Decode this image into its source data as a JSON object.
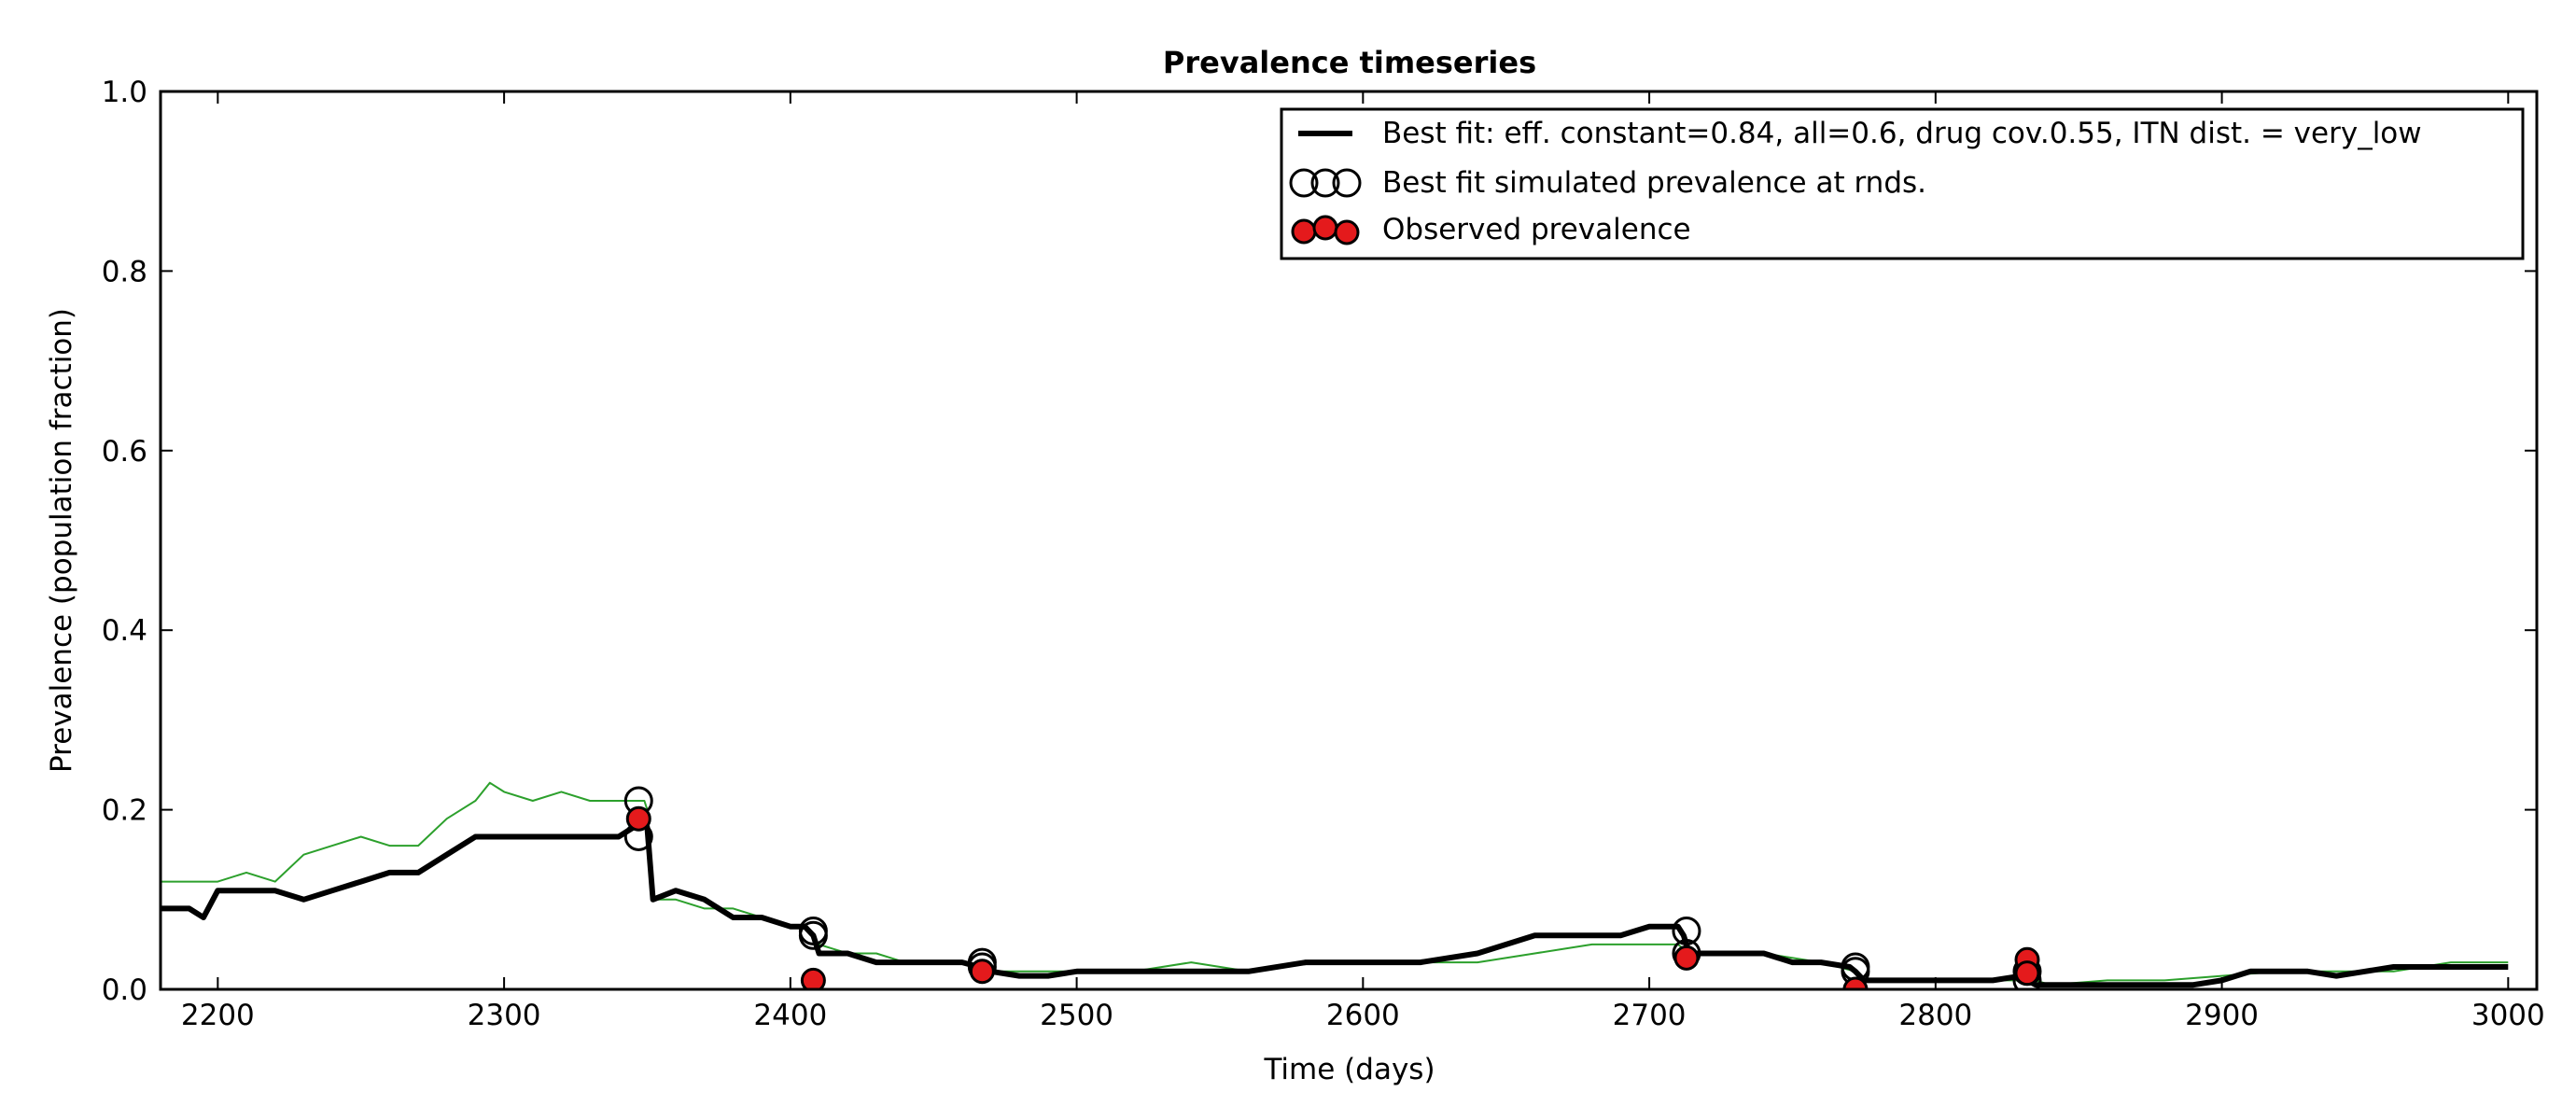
{
  "chart_data": {
    "type": "line",
    "title": "Prevalence timeseries",
    "xlabel": "Time (days)",
    "ylabel": "Prevalence (population fraction)",
    "xlim": [
      2180,
      3010
    ],
    "ylim": [
      0.0,
      1.0
    ],
    "x_ticks": [
      2200,
      2300,
      2400,
      2500,
      2600,
      2700,
      2800,
      2900,
      3000
    ],
    "x_tick_labels": [
      "2200",
      "2300",
      "2400",
      "2500",
      "2600",
      "2700",
      "2800",
      "2900",
      "3000"
    ],
    "y_ticks": [
      0.0,
      0.2,
      0.4,
      0.6,
      0.8,
      1.0
    ],
    "y_tick_labels": [
      "0.0",
      "0.2",
      "0.4",
      "0.6",
      "0.8",
      "1.0"
    ],
    "grid": false,
    "legend_position": "top-right",
    "legend": [
      {
        "label": "Best fit: eff. constant=0.84, all=0.6, drug cov.0.55, ITN dist. = very_low",
        "marker": "line"
      },
      {
        "label": "Best fit simulated prevalence at rnds.",
        "marker": "open-circle"
      },
      {
        "label": "Observed prevalence",
        "marker": "filled-circle"
      }
    ],
    "series": [
      {
        "label_ref": 0,
        "style": "line",
        "color": "#000000",
        "x": [
          2180,
          2190,
          2195,
          2200,
          2210,
          2220,
          2230,
          2240,
          2250,
          2260,
          2270,
          2280,
          2290,
          2300,
          2310,
          2320,
          2330,
          2340,
          2345,
          2349,
          2350,
          2352,
          2360,
          2370,
          2380,
          2390,
          2400,
          2405,
          2408,
          2410,
          2420,
          2430,
          2440,
          2450,
          2460,
          2466,
          2470,
          2480,
          2490,
          2500,
          2520,
          2540,
          2560,
          2580,
          2600,
          2620,
          2640,
          2660,
          2680,
          2690,
          2700,
          2710,
          2712,
          2714,
          2720,
          2730,
          2740,
          2750,
          2760,
          2770,
          2772,
          2775,
          2780,
          2790,
          2800,
          2810,
          2820,
          2830,
          2832,
          2835,
          2840,
          2850,
          2860,
          2870,
          2880,
          2890,
          2900,
          2910,
          2920,
          2930,
          2940,
          2950,
          2960,
          2970,
          2980,
          2990,
          3000
        ],
        "y": [
          0.09,
          0.09,
          0.08,
          0.11,
          0.11,
          0.11,
          0.1,
          0.11,
          0.12,
          0.13,
          0.13,
          0.15,
          0.17,
          0.17,
          0.17,
          0.17,
          0.17,
          0.17,
          0.18,
          0.19,
          0.18,
          0.1,
          0.11,
          0.1,
          0.08,
          0.08,
          0.07,
          0.07,
          0.06,
          0.04,
          0.04,
          0.03,
          0.03,
          0.03,
          0.03,
          0.025,
          0.02,
          0.015,
          0.015,
          0.02,
          0.02,
          0.02,
          0.02,
          0.03,
          0.03,
          0.03,
          0.04,
          0.06,
          0.06,
          0.06,
          0.07,
          0.07,
          0.06,
          0.04,
          0.04,
          0.04,
          0.04,
          0.03,
          0.03,
          0.025,
          0.02,
          0.01,
          0.01,
          0.01,
          0.01,
          0.01,
          0.01,
          0.015,
          0.01,
          0.005,
          0.005,
          0.005,
          0.005,
          0.005,
          0.005,
          0.005,
          0.01,
          0.02,
          0.02,
          0.02,
          0.015,
          0.02,
          0.025,
          0.025,
          0.025,
          0.025,
          0.025
        ]
      },
      {
        "style": "line",
        "color": "#2ca02c",
        "x": [
          2180,
          2190,
          2200,
          2210,
          2220,
          2230,
          2240,
          2250,
          2260,
          2270,
          2280,
          2290,
          2295,
          2300,
          2310,
          2320,
          2330,
          2340,
          2345,
          2349,
          2350,
          2352,
          2360,
          2370,
          2380,
          2390,
          2400,
          2405,
          2410,
          2420,
          2430,
          2440,
          2450,
          2460,
          2470,
          2480,
          2500,
          2520,
          2540,
          2560,
          2580,
          2600,
          2620,
          2640,
          2660,
          2680,
          2700,
          2710,
          2714,
          2720,
          2740,
          2760,
          2772,
          2775,
          2780,
          2800,
          2820,
          2835,
          2840,
          2860,
          2880,
          2900,
          2920,
          2940,
          2960,
          2980,
          3000
        ],
        "y": [
          0.12,
          0.12,
          0.12,
          0.13,
          0.12,
          0.15,
          0.16,
          0.17,
          0.16,
          0.16,
          0.19,
          0.21,
          0.23,
          0.22,
          0.21,
          0.22,
          0.21,
          0.21,
          0.21,
          0.21,
          0.2,
          0.1,
          0.1,
          0.09,
          0.09,
          0.08,
          0.07,
          0.07,
          0.05,
          0.04,
          0.04,
          0.03,
          0.03,
          0.03,
          0.02,
          0.02,
          0.02,
          0.02,
          0.03,
          0.02,
          0.03,
          0.03,
          0.03,
          0.03,
          0.04,
          0.05,
          0.05,
          0.05,
          0.04,
          0.04,
          0.04,
          0.03,
          0.02,
          0.01,
          0.01,
          0.01,
          0.01,
          0.01,
          0.005,
          0.01,
          0.01,
          0.015,
          0.02,
          0.02,
          0.02,
          0.03,
          0.03
        ]
      },
      {
        "label_ref": 1,
        "style": "open-circle",
        "color": "#000000",
        "x": [
          2347,
          2347,
          2408,
          2408,
          2467,
          2467,
          2713,
          2713,
          2772,
          2772,
          2832,
          2832
        ],
        "y": [
          0.21,
          0.17,
          0.065,
          0.06,
          0.03,
          0.025,
          0.065,
          0.04,
          0.025,
          0.02,
          0.02,
          0.01
        ]
      },
      {
        "label_ref": 2,
        "style": "filled-circle",
        "color": "#e41a1c",
        "x": [
          2347,
          2408,
          2467,
          2713,
          2772,
          2832,
          2832
        ],
        "y": [
          0.19,
          0.01,
          0.02,
          0.035,
          0.0,
          0.033,
          0.018
        ]
      }
    ]
  }
}
